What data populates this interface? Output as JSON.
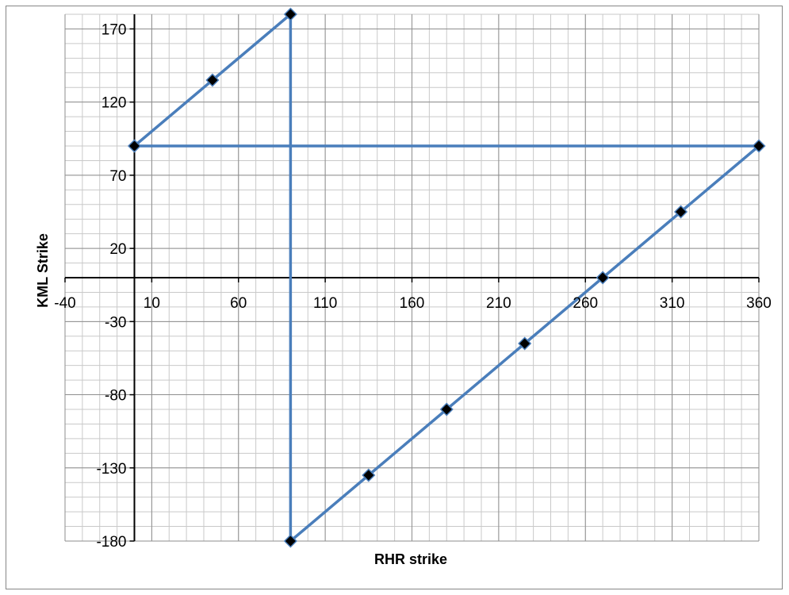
{
  "chart_data": {
    "type": "scatter",
    "title": "",
    "xlabel": "RHR strike",
    "ylabel": "KML Strike",
    "xlim": [
      -40,
      360
    ],
    "ylim": [
      -180,
      180
    ],
    "x_ticks": [
      -40,
      10,
      60,
      110,
      160,
      210,
      260,
      310,
      360
    ],
    "y_ticks": [
      170,
      120,
      70,
      20,
      -30,
      -80,
      -130,
      -180
    ],
    "x_minor_step": 10,
    "y_minor_step": 10,
    "grid": true,
    "legend": "none",
    "series": [
      {
        "style": "line-with-markers",
        "marker": "diamond",
        "color": "#4a7ebb",
        "marker_color": "#000000",
        "points": [
          {
            "x": 0,
            "y": 90
          },
          {
            "x": 45,
            "y": 135
          },
          {
            "x": 90,
            "y": 180
          },
          {
            "x": 90,
            "y": -180
          },
          {
            "x": 135,
            "y": -135
          },
          {
            "x": 180,
            "y": -90
          },
          {
            "x": 225,
            "y": -45
          },
          {
            "x": 270,
            "y": 0
          },
          {
            "x": 315,
            "y": 45
          },
          {
            "x": 360,
            "y": 90
          },
          {
            "x": 0,
            "y": 90
          }
        ]
      }
    ]
  }
}
